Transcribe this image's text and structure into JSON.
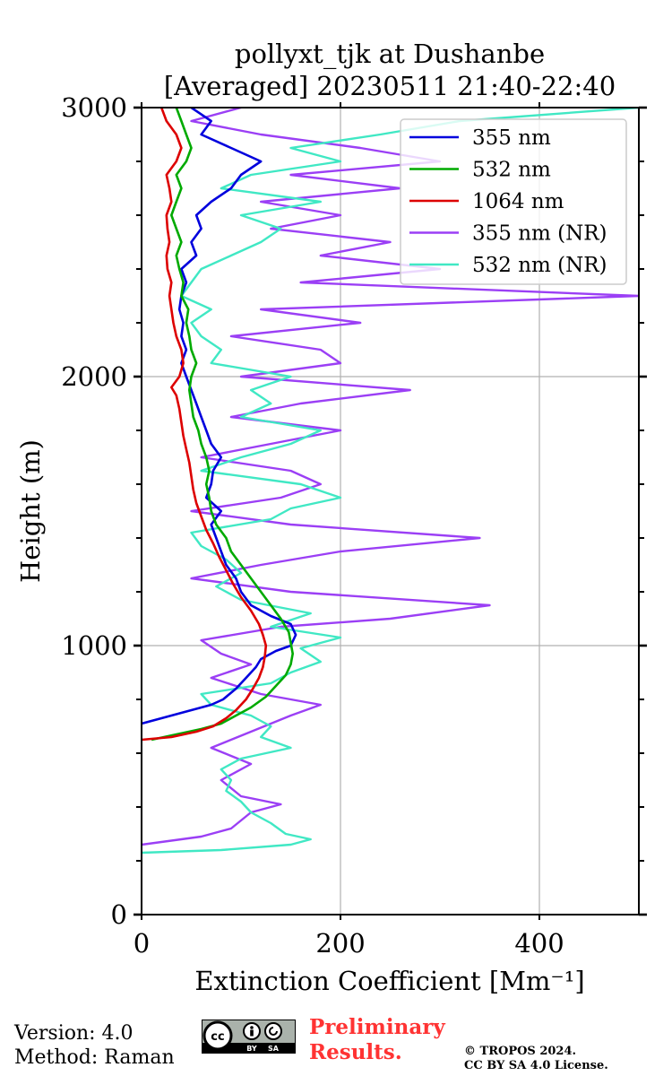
{
  "chart_data": {
    "type": "line",
    "title_line1": "pollyxt_tjk at Dushanbe",
    "title_line2": "[Averaged] 20230511 21:40-22:40",
    "xlabel": "Extinction Coefficient [Mm⁻¹]",
    "ylabel": "Height (m)",
    "xlim": [
      0,
      500
    ],
    "ylim": [
      0,
      3000
    ],
    "xticks": [
      0,
      200,
      400
    ],
    "yticks": [
      0,
      1000,
      2000,
      3000
    ],
    "grid": true,
    "legend_position": "top-right",
    "series": [
      {
        "name": "355 nm",
        "color": "#0000dd",
        "points": [
          [
            0,
            710
          ],
          [
            20,
            730
          ],
          [
            40,
            750
          ],
          [
            55,
            765
          ],
          [
            70,
            780
          ],
          [
            82,
            800
          ],
          [
            95,
            840
          ],
          [
            105,
            880
          ],
          [
            115,
            920
          ],
          [
            120,
            950
          ],
          [
            135,
            980
          ],
          [
            150,
            1000
          ],
          [
            155,
            1040
          ],
          [
            150,
            1080
          ],
          [
            130,
            1110
          ],
          [
            110,
            1150
          ],
          [
            100,
            1200
          ],
          [
            95,
            1250
          ],
          [
            85,
            1300
          ],
          [
            80,
            1350
          ],
          [
            75,
            1400
          ],
          [
            70,
            1450
          ],
          [
            80,
            1500
          ],
          [
            65,
            1550
          ],
          [
            70,
            1600
          ],
          [
            72,
            1650
          ],
          [
            80,
            1700
          ],
          [
            70,
            1750
          ],
          [
            65,
            1800
          ],
          [
            60,
            1850
          ],
          [
            55,
            1900
          ],
          [
            50,
            1950
          ],
          [
            45,
            2000
          ],
          [
            40,
            2050
          ],
          [
            45,
            2100
          ],
          [
            40,
            2150
          ],
          [
            42,
            2200
          ],
          [
            38,
            2250
          ],
          [
            40,
            2300
          ],
          [
            45,
            2350
          ],
          [
            40,
            2400
          ],
          [
            55,
            2450
          ],
          [
            50,
            2500
          ],
          [
            60,
            2550
          ],
          [
            55,
            2600
          ],
          [
            70,
            2650
          ],
          [
            90,
            2700
          ],
          [
            100,
            2750
          ],
          [
            120,
            2800
          ],
          [
            90,
            2850
          ],
          [
            60,
            2900
          ],
          [
            70,
            2950
          ],
          [
            50,
            3000
          ]
        ]
      },
      {
        "name": "532 nm",
        "color": "#00aa00",
        "points": [
          [
            10,
            650
          ],
          [
            35,
            670
          ],
          [
            60,
            690
          ],
          [
            80,
            710
          ],
          [
            95,
            740
          ],
          [
            110,
            770
          ],
          [
            125,
            810
          ],
          [
            135,
            850
          ],
          [
            145,
            890
          ],
          [
            150,
            930
          ],
          [
            152,
            970
          ],
          [
            150,
            1010
          ],
          [
            148,
            1050
          ],
          [
            140,
            1100
          ],
          [
            130,
            1150
          ],
          [
            120,
            1200
          ],
          [
            110,
            1250
          ],
          [
            100,
            1300
          ],
          [
            90,
            1350
          ],
          [
            85,
            1400
          ],
          [
            75,
            1450
          ],
          [
            70,
            1500
          ],
          [
            68,
            1550
          ],
          [
            65,
            1600
          ],
          [
            68,
            1650
          ],
          [
            65,
            1700
          ],
          [
            60,
            1750
          ],
          [
            57,
            1800
          ],
          [
            52,
            1850
          ],
          [
            50,
            1900
          ],
          [
            48,
            1950
          ],
          [
            50,
            2000
          ],
          [
            55,
            2050
          ],
          [
            50,
            2100
          ],
          [
            48,
            2150
          ],
          [
            45,
            2200
          ],
          [
            47,
            2250
          ],
          [
            40,
            2300
          ],
          [
            42,
            2350
          ],
          [
            38,
            2400
          ],
          [
            35,
            2450
          ],
          [
            40,
            2500
          ],
          [
            35,
            2550
          ],
          [
            30,
            2600
          ],
          [
            35,
            2650
          ],
          [
            40,
            2700
          ],
          [
            35,
            2750
          ],
          [
            45,
            2800
          ],
          [
            50,
            2850
          ],
          [
            45,
            2900
          ],
          [
            40,
            2950
          ],
          [
            35,
            3000
          ]
        ]
      },
      {
        "name": "1064 nm",
        "color": "#dd0000",
        "points": [
          [
            0,
            650
          ],
          [
            30,
            660
          ],
          [
            55,
            680
          ],
          [
            72,
            700
          ],
          [
            85,
            730
          ],
          [
            95,
            760
          ],
          [
            105,
            800
          ],
          [
            112,
            840
          ],
          [
            118,
            880
          ],
          [
            122,
            920
          ],
          [
            124,
            960
          ],
          [
            125,
            1000
          ],
          [
            122,
            1040
          ],
          [
            118,
            1080
          ],
          [
            110,
            1130
          ],
          [
            100,
            1180
          ],
          [
            92,
            1230
          ],
          [
            85,
            1280
          ],
          [
            78,
            1330
          ],
          [
            72,
            1380
          ],
          [
            65,
            1430
          ],
          [
            60,
            1480
          ],
          [
            55,
            1530
          ],
          [
            52,
            1580
          ],
          [
            50,
            1630
          ],
          [
            48,
            1680
          ],
          [
            45,
            1730
          ],
          [
            42,
            1780
          ],
          [
            40,
            1830
          ],
          [
            38,
            1880
          ],
          [
            35,
            1930
          ],
          [
            30,
            1960
          ],
          [
            38,
            2000
          ],
          [
            42,
            2050
          ],
          [
            40,
            2100
          ],
          [
            35,
            2150
          ],
          [
            32,
            2200
          ],
          [
            30,
            2250
          ],
          [
            28,
            2300
          ],
          [
            30,
            2350
          ],
          [
            26,
            2400
          ],
          [
            25,
            2450
          ],
          [
            28,
            2500
          ],
          [
            26,
            2550
          ],
          [
            25,
            2600
          ],
          [
            30,
            2650
          ],
          [
            28,
            2700
          ],
          [
            25,
            2750
          ],
          [
            35,
            2800
          ],
          [
            40,
            2850
          ],
          [
            35,
            2900
          ],
          [
            25,
            2950
          ],
          [
            20,
            3000
          ]
        ]
      },
      {
        "name": "355 nm (NR)",
        "color": "#9b3ff5",
        "points": [
          [
            0,
            260
          ],
          [
            60,
            290
          ],
          [
            90,
            320
          ],
          [
            110,
            380
          ],
          [
            140,
            410
          ],
          [
            100,
            440
          ],
          [
            80,
            500
          ],
          [
            110,
            560
          ],
          [
            70,
            620
          ],
          [
            110,
            680
          ],
          [
            150,
            740
          ],
          [
            180,
            780
          ],
          [
            120,
            820
          ],
          [
            70,
            880
          ],
          [
            110,
            930
          ],
          [
            80,
            970
          ],
          [
            60,
            1020
          ],
          [
            140,
            1070
          ],
          [
            250,
            1100
          ],
          [
            350,
            1150
          ],
          [
            150,
            1200
          ],
          [
            50,
            1250
          ],
          [
            120,
            1300
          ],
          [
            200,
            1350
          ],
          [
            340,
            1400
          ],
          [
            150,
            1450
          ],
          [
            50,
            1500
          ],
          [
            140,
            1550
          ],
          [
            180,
            1600
          ],
          [
            150,
            1650
          ],
          [
            60,
            1700
          ],
          [
            130,
            1750
          ],
          [
            200,
            1800
          ],
          [
            90,
            1850
          ],
          [
            160,
            1900
          ],
          [
            270,
            1950
          ],
          [
            100,
            2000
          ],
          [
            200,
            2050
          ],
          [
            180,
            2100
          ],
          [
            90,
            2150
          ],
          [
            220,
            2200
          ],
          [
            120,
            2250
          ],
          [
            500,
            2300
          ],
          [
            160,
            2350
          ],
          [
            300,
            2400
          ],
          [
            180,
            2450
          ],
          [
            250,
            2500
          ],
          [
            130,
            2550
          ],
          [
            200,
            2600
          ],
          [
            120,
            2650
          ],
          [
            260,
            2700
          ],
          [
            150,
            2750
          ],
          [
            300,
            2800
          ],
          [
            220,
            2850
          ],
          [
            120,
            2900
          ],
          [
            50,
            2950
          ],
          [
            100,
            3000
          ]
        ]
      },
      {
        "name": "532 nm (NR)",
        "color": "#40e8c4",
        "points": [
          [
            0,
            230
          ],
          [
            80,
            240
          ],
          [
            150,
            260
          ],
          [
            170,
            280
          ],
          [
            145,
            300
          ],
          [
            130,
            340
          ],
          [
            110,
            380
          ],
          [
            100,
            420
          ],
          [
            85,
            460
          ],
          [
            90,
            500
          ],
          [
            80,
            540
          ],
          [
            100,
            580
          ],
          [
            150,
            620
          ],
          [
            120,
            660
          ],
          [
            130,
            700
          ],
          [
            110,
            740
          ],
          [
            70,
            780
          ],
          [
            60,
            820
          ],
          [
            130,
            860
          ],
          [
            150,
            900
          ],
          [
            180,
            940
          ],
          [
            160,
            990
          ],
          [
            200,
            1030
          ],
          [
            130,
            1070
          ],
          [
            170,
            1120
          ],
          [
            100,
            1170
          ],
          [
            75,
            1220
          ],
          [
            100,
            1270
          ],
          [
            85,
            1320
          ],
          [
            60,
            1370
          ],
          [
            50,
            1420
          ],
          [
            130,
            1470
          ],
          [
            150,
            1510
          ],
          [
            200,
            1550
          ],
          [
            160,
            1600
          ],
          [
            60,
            1650
          ],
          [
            100,
            1700
          ],
          [
            150,
            1750
          ],
          [
            180,
            1800
          ],
          [
            100,
            1850
          ],
          [
            130,
            1900
          ],
          [
            110,
            1950
          ],
          [
            150,
            2000
          ],
          [
            70,
            2050
          ],
          [
            80,
            2100
          ],
          [
            60,
            2150
          ],
          [
            50,
            2200
          ],
          [
            70,
            2250
          ],
          [
            40,
            2300
          ],
          [
            50,
            2350
          ],
          [
            60,
            2400
          ],
          [
            90,
            2450
          ],
          [
            120,
            2500
          ],
          [
            140,
            2550
          ],
          [
            100,
            2600
          ],
          [
            180,
            2650
          ],
          [
            80,
            2700
          ],
          [
            110,
            2750
          ],
          [
            200,
            2800
          ],
          [
            150,
            2850
          ],
          [
            240,
            2900
          ],
          [
            320,
            2950
          ],
          [
            500,
            3000
          ]
        ]
      }
    ]
  },
  "footer": {
    "version": "Version: 4.0",
    "method": "Method: Raman",
    "preliminary_line1": "Preliminary",
    "preliminary_line2": "Results.",
    "copyright_line1": "© TROPOS 2024.",
    "copyright_line2": "CC BY SA 4.0 License.",
    "license_badge": "cc-by-sa-icon"
  }
}
